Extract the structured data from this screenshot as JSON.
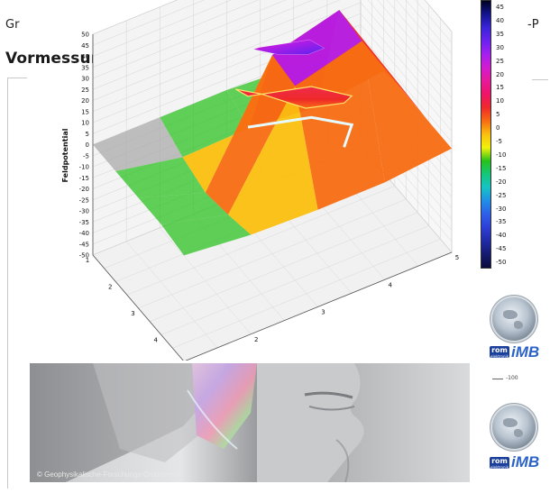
{
  "page": {
    "header_left": "Gr",
    "header_right": "-P",
    "title": "Vormessung (ohne Entstör-Produkt)"
  },
  "chart_data": {
    "type": "surface3d",
    "title": "",
    "zlabel": "Feldpotential",
    "z_ticks": [
      50,
      45,
      40,
      35,
      30,
      25,
      20,
      15,
      10,
      5,
      0,
      -5,
      -10,
      -15,
      -20,
      -25,
      -30,
      -35,
      -40,
      -45,
      -50
    ],
    "zlim": [
      -50,
      50
    ],
    "x_ticks": [
      1,
      2,
      3,
      4,
      5
    ],
    "y_ticks": [
      1,
      2,
      3,
      4,
      5
    ],
    "xlim": [
      1,
      5
    ],
    "ylim": [
      1,
      5
    ],
    "grid": true,
    "grid_rows": [
      [
        0,
        0,
        0,
        -2,
        -4
      ],
      [
        0,
        -6,
        -5,
        -8,
        -4
      ],
      [
        0,
        -10,
        40,
        48,
        -2
      ],
      [
        0,
        -8,
        38,
        46,
        -3
      ],
      [
        -2,
        -5,
        -6,
        -6,
        -3
      ]
    ],
    "colorbar": {
      "ticks": [
        45,
        40,
        35,
        30,
        25,
        20,
        15,
        10,
        5,
        0,
        -5,
        -10,
        -15,
        -20,
        -25,
        -30,
        -35,
        -40,
        -45,
        -50
      ],
      "colors": [
        "#000020",
        "#13148f",
        "#3a23d9",
        "#6b22ef",
        "#a51ff0",
        "#d21ccf",
        "#e8199a",
        "#ee1468",
        "#ef2a2a",
        "#f76b12",
        "#fbbf10",
        "#f2f20c",
        "#27c11b",
        "#14c77a",
        "#16c3c6",
        "#1f8ee6",
        "#2e5fe8",
        "#2e3ed6",
        "#202ba6",
        "#151a70",
        "#0a0c3a"
      ]
    }
  },
  "photo": {
    "copyright": "© Geophysikalische-Forschungs-Gruppe e.V."
  },
  "logos": {
    "rom_text": "rom",
    "rom_sub": "elektronik",
    "imb_text": "iMB",
    "small_mark": "-100"
  }
}
